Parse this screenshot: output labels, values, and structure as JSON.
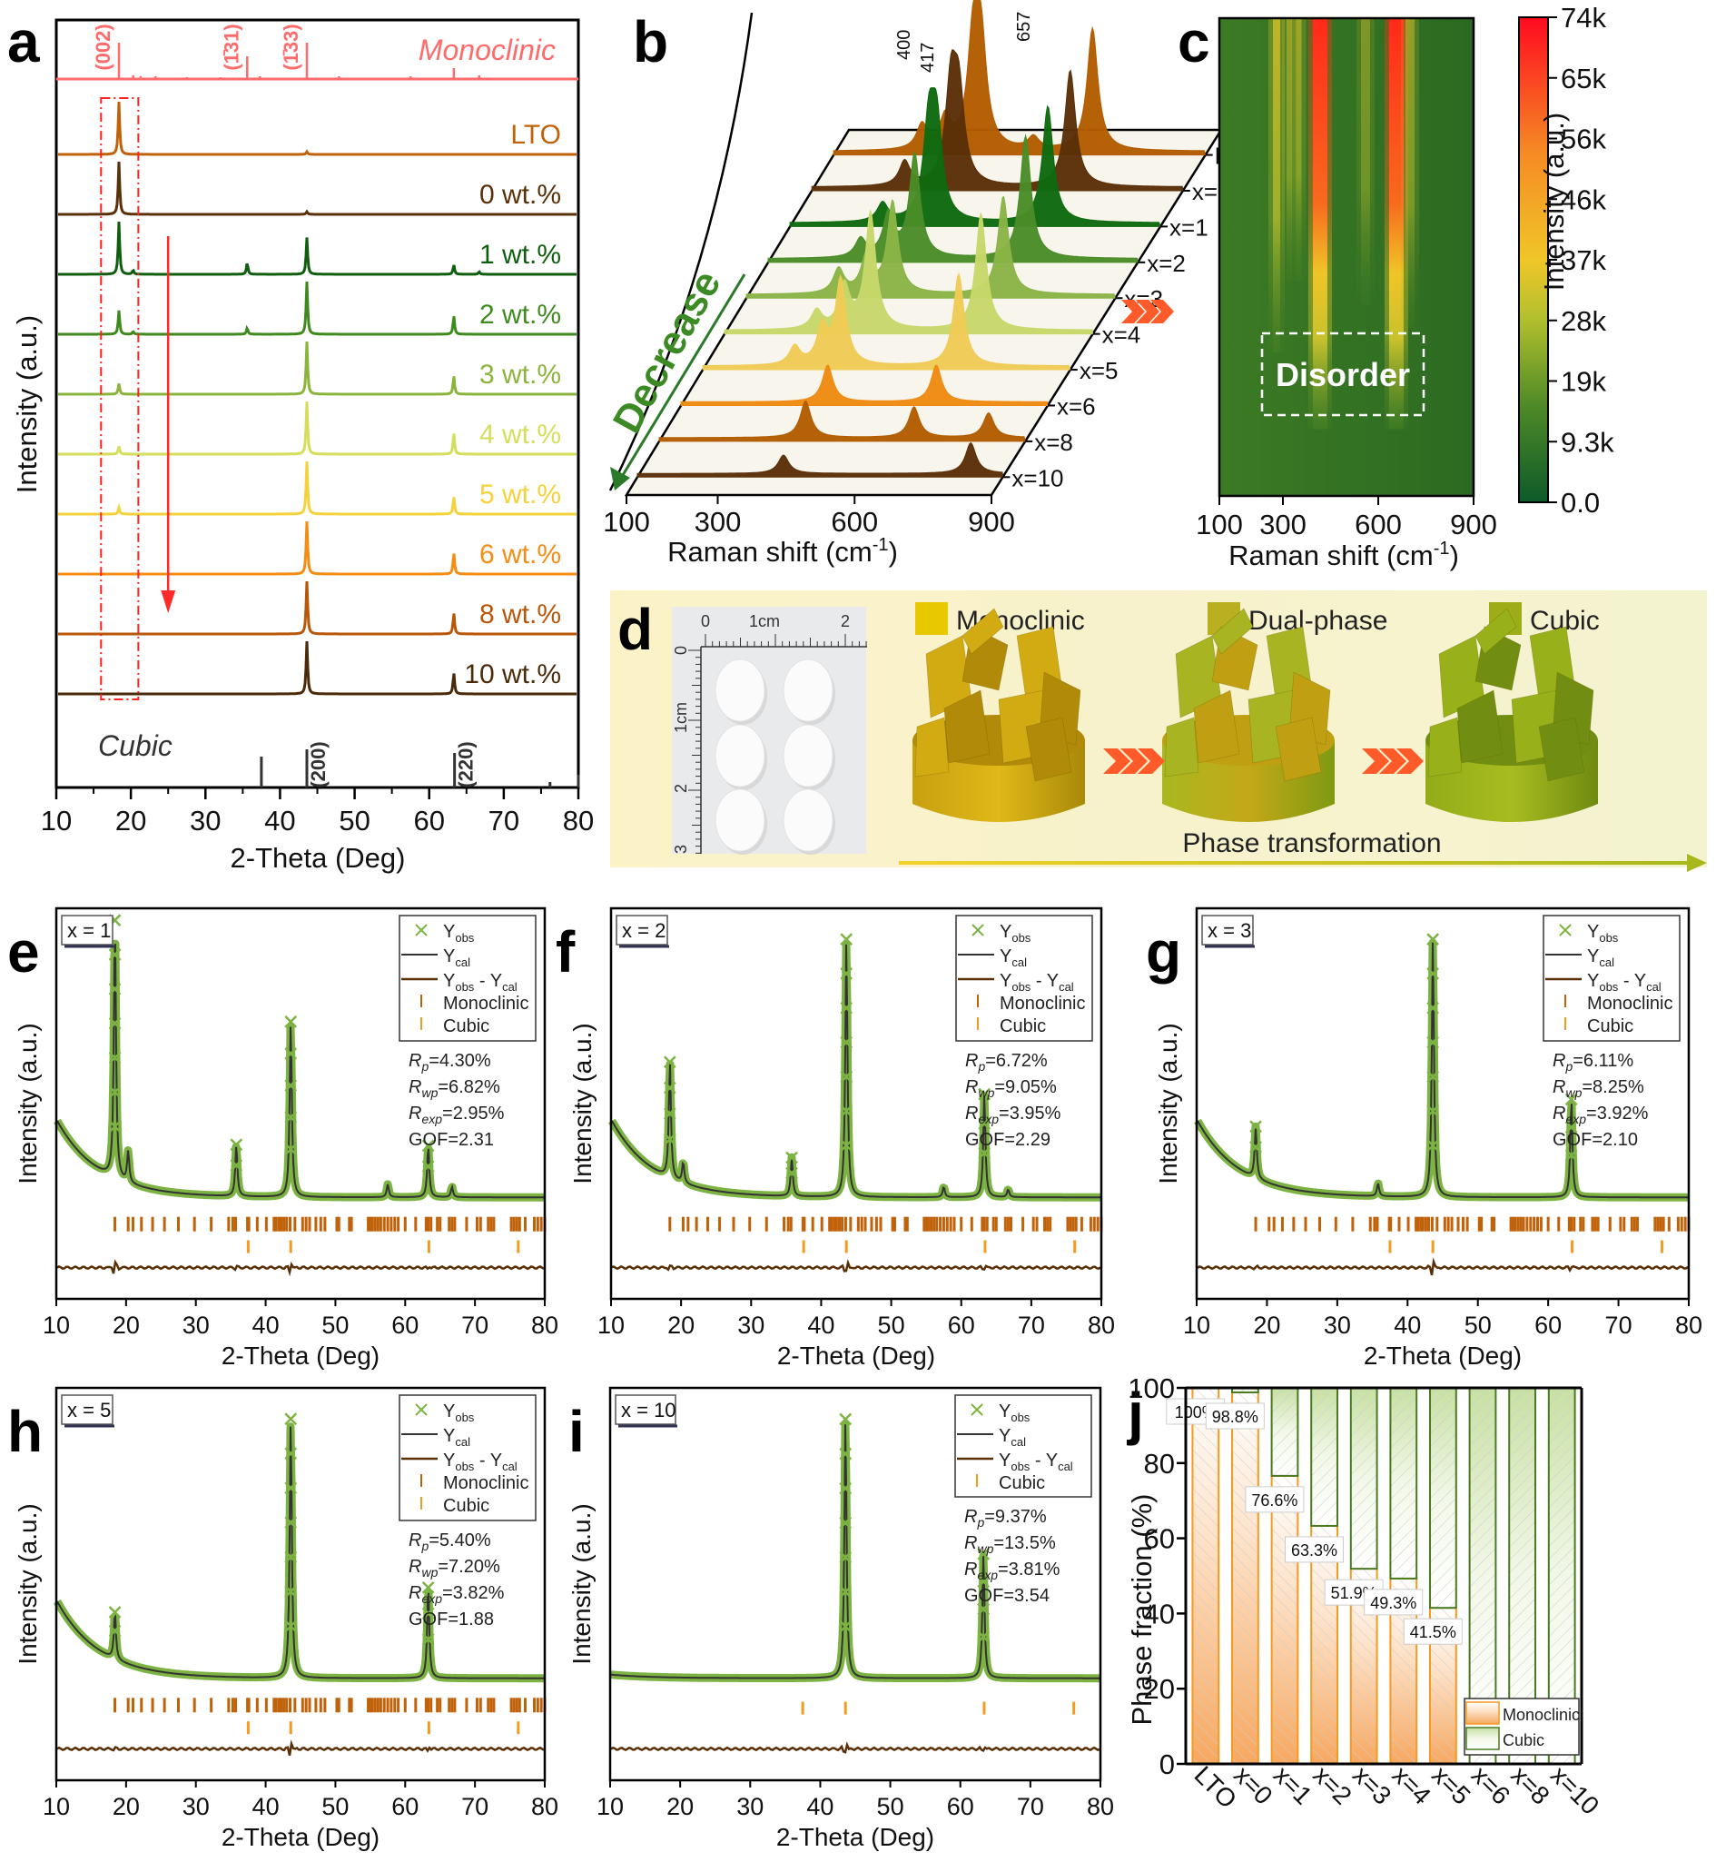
{
  "figure": {
    "panel_labels": [
      "a",
      "b",
      "c",
      "d",
      "e",
      "f",
      "g",
      "h",
      "i",
      "j"
    ]
  },
  "chart_data": [
    {
      "id": "a",
      "type": "line",
      "title": "",
      "xlabel": "2-Theta (Deg)",
      "ylabel": "Intensity (a.u.)",
      "xlim": [
        10,
        80
      ],
      "xticks": [
        10,
        20,
        30,
        40,
        50,
        60,
        70,
        80
      ],
      "reference_top": {
        "label": "Monoclinic",
        "color": "#ff6b6b",
        "peaks": [
          18.4,
          20.3,
          21.3,
          23.3,
          27.5,
          32.0,
          35.6,
          37.3,
          43.6,
          47.9,
          57.5,
          63.3,
          66.7
        ],
        "hkl": [
          {
            "label": "(002)",
            "x": 18.4
          },
          {
            "label": "(-131)",
            "x": 35.6
          },
          {
            "label": "(-133)",
            "x": 43.6
          }
        ]
      },
      "reference_bottom": {
        "label": "Cubic",
        "color": "#333333",
        "peaks": [
          37.5,
          43.6,
          63.4,
          76.2,
          80.0
        ],
        "hkl": [
          {
            "label": "(200)",
            "x": 43.6
          },
          {
            "label": "(220)",
            "x": 63.4
          }
        ]
      },
      "series": [
        {
          "name": "LTO",
          "color": "#c0620a",
          "peaks": [
            {
              "x": 18.4,
              "h": 1.0
            },
            {
              "x": 43.6,
              "h": 0.05
            }
          ]
        },
        {
          "name": "0 wt.%",
          "color": "#5a3008",
          "peaks": [
            {
              "x": 18.4,
              "h": 1.0
            },
            {
              "x": 43.6,
              "h": 0.05
            }
          ]
        },
        {
          "name": "1 wt.%",
          "color": "#0f5e0f",
          "peaks": [
            {
              "x": 18.4,
              "h": 1.0
            },
            {
              "x": 20.3,
              "h": 0.08
            },
            {
              "x": 35.6,
              "h": 0.22
            },
            {
              "x": 43.6,
              "h": 0.7
            },
            {
              "x": 63.3,
              "h": 0.18
            },
            {
              "x": 66.7,
              "h": 0.05
            }
          ]
        },
        {
          "name": "2 wt.%",
          "color": "#3f8a1f",
          "peaks": [
            {
              "x": 18.4,
              "h": 0.45
            },
            {
              "x": 20.3,
              "h": 0.05
            },
            {
              "x": 35.6,
              "h": 0.12
            },
            {
              "x": 43.6,
              "h": 1.0
            },
            {
              "x": 63.3,
              "h": 0.35
            }
          ]
        },
        {
          "name": "3 wt.%",
          "color": "#8bb43c",
          "peaks": [
            {
              "x": 18.4,
              "h": 0.2
            },
            {
              "x": 43.6,
              "h": 1.0
            },
            {
              "x": 63.3,
              "h": 0.35
            }
          ]
        },
        {
          "name": "4 wt.%",
          "color": "#d4de5a",
          "peaks": [
            {
              "x": 18.4,
              "h": 0.15
            },
            {
              "x": 43.6,
              "h": 1.0
            },
            {
              "x": 63.3,
              "h": 0.4
            }
          ]
        },
        {
          "name": "5 wt.%",
          "color": "#f5d23c",
          "peaks": [
            {
              "x": 18.4,
              "h": 0.12
            },
            {
              "x": 43.6,
              "h": 1.0
            },
            {
              "x": 63.3,
              "h": 0.33
            }
          ]
        },
        {
          "name": "6 wt.%",
          "color": "#f58c14",
          "peaks": [
            {
              "x": 43.6,
              "h": 1.0
            },
            {
              "x": 63.3,
              "h": 0.4
            }
          ]
        },
        {
          "name": "8 wt.%",
          "color": "#b8560a",
          "peaks": [
            {
              "x": 43.6,
              "h": 1.0
            },
            {
              "x": 63.3,
              "h": 0.4
            }
          ]
        },
        {
          "name": "10 wt.%",
          "color": "#4a2a08",
          "peaks": [
            {
              "x": 43.6,
              "h": 1.0
            },
            {
              "x": 63.3,
              "h": 0.4
            }
          ]
        }
      ],
      "annotations": [
        "dashed box around 2θ≈18°",
        "red arrow down at 2θ≈25°"
      ]
    },
    {
      "id": "b",
      "type": "area",
      "xlabel": "Raman shift (cm-1)",
      "xlim": [
        100,
        900
      ],
      "xticks": [
        100,
        300,
        600,
        900
      ],
      "peak_labels": [
        "400",
        "417",
        "657"
      ],
      "arrow_label": "Decrease",
      "series": [
        {
          "name": "LTO",
          "color": "#b35c00",
          "peaks": [
            {
              "x": 290,
              "h": 0.2
            },
            {
              "x": 340,
              "h": 0.25
            },
            {
              "x": 400,
              "h": 0.85
            },
            {
              "x": 417,
              "h": 0.85
            },
            {
              "x": 530,
              "h": 0.1
            },
            {
              "x": 657,
              "h": 1.0
            }
          ]
        },
        {
          "name": "x=0",
          "color": "#5a3008",
          "peaks": [
            {
              "x": 300,
              "h": 0.2
            },
            {
              "x": 400,
              "h": 0.8
            },
            {
              "x": 417,
              "h": 0.7
            },
            {
              "x": 657,
              "h": 0.95
            }
          ]
        },
        {
          "name": "x=1",
          "color": "#0e6a0e",
          "peaks": [
            {
              "x": 300,
              "h": 0.15
            },
            {
              "x": 400,
              "h": 0.75
            },
            {
              "x": 417,
              "h": 0.75
            },
            {
              "x": 657,
              "h": 0.95
            }
          ]
        },
        {
          "name": "x=2",
          "color": "#4a8c28",
          "peaks": [
            {
              "x": 300,
              "h": 0.15
            },
            {
              "x": 360,
              "h": 0.35
            },
            {
              "x": 417,
              "h": 0.85
            },
            {
              "x": 657,
              "h": 1.0
            }
          ]
        },
        {
          "name": "x=3",
          "color": "#8ab446",
          "peaks": [
            {
              "x": 300,
              "h": 0.2
            },
            {
              "x": 360,
              "h": 0.3
            },
            {
              "x": 417,
              "h": 0.75
            },
            {
              "x": 657,
              "h": 0.8
            }
          ]
        },
        {
          "name": "x=4",
          "color": "#c8d86a",
          "peaks": [
            {
              "x": 300,
              "h": 0.15
            },
            {
              "x": 360,
              "h": 0.35
            },
            {
              "x": 417,
              "h": 0.95
            },
            {
              "x": 657,
              "h": 0.95
            }
          ]
        },
        {
          "name": "x=5",
          "color": "#efcb55",
          "peaks": [
            {
              "x": 300,
              "h": 0.15
            },
            {
              "x": 360,
              "h": 0.3
            },
            {
              "x": 400,
              "h": 0.7
            },
            {
              "x": 657,
              "h": 0.75
            }
          ]
        },
        {
          "name": "x=6",
          "color": "#ee8a12",
          "peaks": [
            {
              "x": 420,
              "h": 0.3
            },
            {
              "x": 657,
              "h": 0.3
            }
          ]
        },
        {
          "name": "x=8",
          "color": "#b35c00",
          "peaks": [
            {
              "x": 420,
              "h": 0.3
            },
            {
              "x": 657,
              "h": 0.25
            },
            {
              "x": 820,
              "h": 0.2
            }
          ]
        },
        {
          "name": "x=10",
          "color": "#5a3008",
          "peaks": [
            {
              "x": 420,
              "h": 0.15
            },
            {
              "x": 830,
              "h": 0.25
            }
          ]
        }
      ]
    },
    {
      "id": "c",
      "type": "heatmap",
      "xlabel": "Raman shift (cm-1)",
      "xlim": [
        100,
        900
      ],
      "xticks": [
        100,
        300,
        600,
        900
      ],
      "colorbar_label": "Intensity (a.u.)",
      "colorbar_ticks": [
        "0.0",
        "9.3k",
        "19k",
        "28k",
        "37k",
        "46k",
        "56k",
        "65k",
        "74k"
      ],
      "colorbar_range": [
        0,
        74000
      ],
      "colorbar_colors": [
        "#0d5a2a",
        "#5a8f25",
        "#b6c12c",
        "#f2c21e",
        "#f58a20",
        "#ff0a20"
      ],
      "rows": [
        "LTO",
        "x=0",
        "x=1",
        "x=2",
        "x=3",
        "x=4",
        "x=5",
        "x=6",
        "x=8",
        "x=10"
      ],
      "bands": [
        280,
        340,
        417,
        550,
        657,
        770
      ],
      "annotation": "Disorder"
    },
    {
      "id": "j",
      "type": "bar",
      "stacked": true,
      "categories": [
        "LTO",
        "x=0",
        "x=1",
        "x=2",
        "x=3",
        "x=4",
        "x=5",
        "x=6",
        "x=8",
        "x=10"
      ],
      "series": [
        {
          "name": "Monoclinic",
          "color": "#f5a04a",
          "values": [
            100,
            98.8,
            76.6,
            63.3,
            51.9,
            49.3,
            41.5,
            0,
            0,
            0
          ]
        },
        {
          "name": "Cubic",
          "color": "#5a8a2a",
          "values": [
            0,
            1.2,
            23.4,
            36.7,
            48.1,
            50.7,
            58.5,
            100,
            100,
            100
          ]
        }
      ],
      "data_labels": [
        "100%",
        "98.8%",
        "76.6%",
        "63.3%",
        "51.9%",
        "49.3%",
        "41.5%"
      ],
      "ylabel": "Phase fraction (%)",
      "ylim": [
        0,
        100
      ],
      "yticks": [
        0,
        20,
        40,
        60,
        80,
        100
      ],
      "legend": "bottom-right"
    }
  ],
  "panel_a": {
    "monoclinic_label": "Monoclinic",
    "cubic_label": "Cubic",
    "hkl_top": [
      "(002)",
      "(1̄31)",
      "(1̄33)"
    ],
    "hkl_bottom": [
      "(200)",
      "(220)"
    ],
    "xlabel": "2-Theta (Deg)",
    "ylabel": "Intensity (a.u.)",
    "xticks": [
      "10",
      "20",
      "30",
      "40",
      "50",
      "60",
      "70",
      "80"
    ]
  },
  "panel_b": {
    "xlabel": "Raman shift (cm",
    "xlabel_sup": "-1",
    "xlabel_end": ")",
    "xticks": [
      "100",
      "300",
      "600",
      "900"
    ],
    "peak_labels": [
      "400",
      "417",
      "657"
    ],
    "arrow_label": "Decrease",
    "rows": [
      "LTO",
      "x=0",
      "x=1",
      "x=2",
      "x=3",
      "x=4",
      "x=5",
      "x=6",
      "x=8",
      "x=10"
    ]
  },
  "panel_c": {
    "xlabel": "Raman shift (cm",
    "xlabel_sup": "-1",
    "xlabel_end": ")",
    "xticks": [
      "100",
      "300",
      "600",
      "900"
    ],
    "colorbar_label": "Intensity (a.u.)",
    "colorbar_ticks": [
      "74k",
      "65k",
      "56k",
      "46k",
      "37k",
      "28k",
      "19k",
      "9.3k",
      "0.0"
    ],
    "box_label": "Disorder"
  },
  "panel_d": {
    "ruler_top": [
      "0",
      "1cm",
      "2"
    ],
    "ruler_side": [
      "0",
      "1cm",
      "2",
      "3"
    ],
    "legend": [
      "Monoclinic",
      "Dual-phase",
      "Cubic"
    ],
    "legend_colors": [
      "#e8c800",
      "#b8b020",
      "#9cad18"
    ],
    "caption": "Phase transformation",
    "arrow_color": "#ff5a2a"
  },
  "refinements": [
    {
      "id": "e",
      "x_label": "x = 1",
      "Rp": "=4.30%",
      "Rwp": "=6.82%",
      "Rexp": "=2.95%",
      "GOF": "GOF=2.31",
      "has_monoclinic": true,
      "peaks": [
        {
          "x": 18.4,
          "h": 1.0
        },
        {
          "x": 20.3,
          "h": 0.12
        },
        {
          "x": 35.8,
          "h": 0.2
        },
        {
          "x": 43.6,
          "h": 0.68
        },
        {
          "x": 57.5,
          "h": 0.05
        },
        {
          "x": 63.3,
          "h": 0.2
        },
        {
          "x": 66.7,
          "h": 0.04
        }
      ]
    },
    {
      "id": "f",
      "x_label": "x = 2",
      "Rp": "=6.72%",
      "Rwp": "=9.05%",
      "Rexp": "=3.95%",
      "GOF": "GOF=2.29",
      "has_monoclinic": true,
      "peaks": [
        {
          "x": 18.4,
          "h": 0.45
        },
        {
          "x": 20.3,
          "h": 0.08
        },
        {
          "x": 35.8,
          "h": 0.15
        },
        {
          "x": 43.6,
          "h": 1.0
        },
        {
          "x": 57.5,
          "h": 0.04
        },
        {
          "x": 63.3,
          "h": 0.4
        },
        {
          "x": 66.7,
          "h": 0.03
        }
      ]
    },
    {
      "id": "g",
      "x_label": "x = 3",
      "Rp": "=6.11%",
      "Rwp": "=8.25%",
      "Rexp": "=3.92%",
      "GOF": "GOF=2.10",
      "has_monoclinic": true,
      "peaks": [
        {
          "x": 18.4,
          "h": 0.2
        },
        {
          "x": 35.8,
          "h": 0.05
        },
        {
          "x": 43.6,
          "h": 1.0
        },
        {
          "x": 63.3,
          "h": 0.38
        }
      ]
    },
    {
      "id": "h",
      "x_label": "x = 5",
      "Rp": "=5.40%",
      "Rwp": "=7.20%",
      "Rexp": "=3.82%",
      "GOF": "GOF=1.88",
      "has_monoclinic": true,
      "peaks": [
        {
          "x": 18.4,
          "h": 0.18
        },
        {
          "x": 43.6,
          "h": 1.0
        },
        {
          "x": 63.3,
          "h": 0.35
        }
      ]
    },
    {
      "id": "i",
      "x_label": "x = 10",
      "Rp": "=9.37%",
      "Rwp": "=13.5%",
      "Rexp": "=3.81%",
      "GOF": "GOF=3.54",
      "has_monoclinic": false,
      "peaks": [
        {
          "x": 43.6,
          "h": 1.0
        },
        {
          "x": 63.3,
          "h": 0.48
        }
      ]
    }
  ],
  "refinement_common": {
    "xlabel": "2-Theta (Deg)",
    "ylabel": "Intensity (a.u.)",
    "xticks": [
      "10",
      "20",
      "30",
      "40",
      "50",
      "60",
      "70",
      "80"
    ],
    "legend": {
      "yobs": "Y",
      "yobs_sub": "obs",
      "ycal": "Y",
      "ycal_sub": "cal",
      "diff_a": "Y",
      "diff_a_sub": "obs",
      "diff_mid": " - Y",
      "diff_b_sub": "cal",
      "mono": "Monoclinic",
      "cubic": "Cubic"
    },
    "stat_R": "R",
    "stat_p": "p",
    "stat_wp": "wp",
    "stat_exp": "exp",
    "colors": {
      "obs": "#7cb342",
      "cal": "#333333",
      "diff": "#5a3008",
      "mono": "#c0620a",
      "cubic": "#f59a20"
    },
    "mono_ticks": [
      18.4,
      20.3,
      21.0,
      22.2,
      23.8,
      25.5,
      27.5,
      29.8,
      32.2,
      34.7,
      35.3,
      35.7,
      37.4,
      37.6,
      38.8,
      40.1,
      41.2,
      41.5,
      41.9,
      42.2,
      42.6,
      43.0,
      43.5,
      44.2,
      45.3,
      45.8,
      46.3,
      47.2,
      47.9,
      48.5,
      50.2,
      50.5,
      52.0,
      52.3,
      54.7,
      55.0,
      55.3,
      55.7,
      56.1,
      56.5,
      57.0,
      57.5,
      58.0,
      58.5,
      59.0,
      60.0,
      61.5,
      63.0,
      63.3,
      63.7,
      64.6,
      65.0,
      66.3,
      66.7,
      67.1,
      68.8,
      70.3,
      70.8,
      71.9,
      72.3,
      72.7,
      75.2,
      75.6,
      76.0,
      76.4,
      77.2,
      78.5,
      79.0,
      79.5,
      80.0
    ],
    "cubic_ticks": [
      37.5,
      43.6,
      63.4,
      76.2
    ]
  },
  "panel_j": {
    "ylabel": "Phase fraction (%)",
    "yticks": [
      "0",
      "20",
      "40",
      "60",
      "80",
      "100"
    ],
    "categories": [
      "LTO",
      "x=0",
      "x=1",
      "x=2",
      "x=3",
      "x=4",
      "x=5",
      "x=6",
      "x=8",
      "x=10"
    ],
    "labels": [
      "100%",
      "98.8%",
      "76.6%",
      "63.3%",
      "51.9%",
      "49.3%",
      "41.5%"
    ],
    "legend": [
      "Monoclinic",
      "Cubic"
    ]
  }
}
